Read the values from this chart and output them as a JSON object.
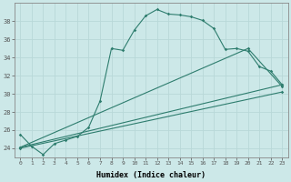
{
  "xlabel": "Humidex (Indice chaleur)",
  "bg_color": "#cce8e8",
  "line_color": "#2e7d6e",
  "xlim": [
    -0.5,
    23.5
  ],
  "ylim": [
    23,
    40
  ],
  "yticks": [
    24,
    26,
    28,
    30,
    32,
    34,
    36,
    38
  ],
  "xticks": [
    0,
    1,
    2,
    3,
    4,
    5,
    6,
    7,
    8,
    9,
    10,
    11,
    12,
    13,
    14,
    15,
    16,
    17,
    18,
    19,
    20,
    21,
    22,
    23
  ],
  "series": [
    {
      "x": [
        0,
        1,
        2,
        3,
        4,
        5,
        6,
        7,
        8,
        9,
        10,
        11,
        12,
        13,
        14,
        15,
        16,
        17,
        18,
        19,
        20,
        21,
        22,
        23
      ],
      "y": [
        25.5,
        24.2,
        23.3,
        24.5,
        24.9,
        25.3,
        26.3,
        29.2,
        35.0,
        34.8,
        37.0,
        38.6,
        39.3,
        38.8,
        38.7,
        38.5,
        38.1,
        37.2,
        34.9,
        35.0,
        34.7,
        33.0,
        32.5,
        31.0
      ]
    },
    {
      "x": [
        0,
        20,
        23
      ],
      "y": [
        24.1,
        35.0,
        30.8
      ]
    },
    {
      "x": [
        0,
        23
      ],
      "y": [
        24.1,
        31.0
      ]
    },
    {
      "x": [
        0,
        23
      ],
      "y": [
        24.0,
        30.2
      ]
    }
  ]
}
